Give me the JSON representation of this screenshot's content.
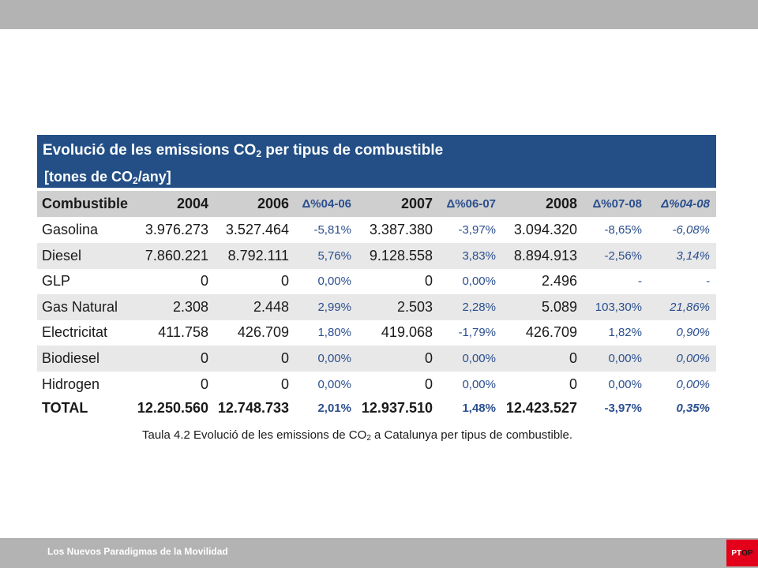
{
  "footer": {
    "text": "Los Nuevos Paradigmas de la Movilidad",
    "logo": "PTOP",
    "logo_left": "PT",
    "logo_right": "OP"
  },
  "table": {
    "title_prefix": "Evolució de les emissions CO",
    "title_sub": "2",
    "title_suffix": " per tipus de combustible",
    "unit_prefix": "[tones de CO",
    "unit_sub": "2",
    "unit_suffix": "/any]",
    "headers": {
      "name": "Combustible",
      "y2004": "2004",
      "y2006": "2006",
      "d1": "Δ%04-06",
      "y2007": "2007",
      "d2": "Δ%06-07",
      "y2008": "2008",
      "d3": "Δ%07-08",
      "d4": "Δ%04-08"
    },
    "rows": [
      {
        "name": "Gasolina",
        "y2004": "3.976.273",
        "y2006": "3.527.464",
        "d1": "-5,81%",
        "y2007": "3.387.380",
        "d2": "-3,97%",
        "y2008": "3.094.320",
        "d3": "-8,65%",
        "d4": "-6,08%"
      },
      {
        "name": "Diesel",
        "y2004": "7.860.221",
        "y2006": "8.792.111",
        "d1": "5,76%",
        "y2007": "9.128.558",
        "d2": "3,83%",
        "y2008": "8.894.913",
        "d3": "-2,56%",
        "d4": "3,14%"
      },
      {
        "name": "GLP",
        "y2004": "0",
        "y2006": "0",
        "d1": "0,00%",
        "y2007": "0",
        "d2": "0,00%",
        "y2008": "2.496",
        "d3": "-",
        "d4": "-"
      },
      {
        "name": "Gas Natural",
        "y2004": "2.308",
        "y2006": "2.448",
        "d1": "2,99%",
        "y2007": "2.503",
        "d2": "2,28%",
        "y2008": "5.089",
        "d3": "103,30%",
        "d4": "21,86%"
      },
      {
        "name": "Electricitat",
        "y2004": "411.758",
        "y2006": "426.709",
        "d1": "1,80%",
        "y2007": "419.068",
        "d2": "-1,79%",
        "y2008": "426.709",
        "d3": "1,82%",
        "d4": "0,90%"
      },
      {
        "name": "Biodiesel",
        "y2004": "0",
        "y2006": "0",
        "d1": "0,00%",
        "y2007": "0",
        "d2": "0,00%",
        "y2008": "0",
        "d3": "0,00%",
        "d4": "0,00%"
      },
      {
        "name": "Hidrogen",
        "y2004": "0",
        "y2006": "0",
        "d1": "0,00%",
        "y2007": "0",
        "d2": "0,00%",
        "y2008": "0",
        "d3": "0,00%",
        "d4": "0,00%"
      }
    ],
    "total": {
      "name": "TOTAL",
      "y2004": "12.250.560",
      "y2006": "12.748.733",
      "d1": "2,01%",
      "y2007": "12.937.510",
      "d2": "1,48%",
      "y2008": "12.423.527",
      "d3": "-3,97%",
      "d4": "0,35%"
    },
    "caption_prefix": "Taula 4.2 Evolució de les emissions de CO",
    "caption_sub": "2",
    "caption_suffix": " a Catalunya per tipus de combustible."
  }
}
